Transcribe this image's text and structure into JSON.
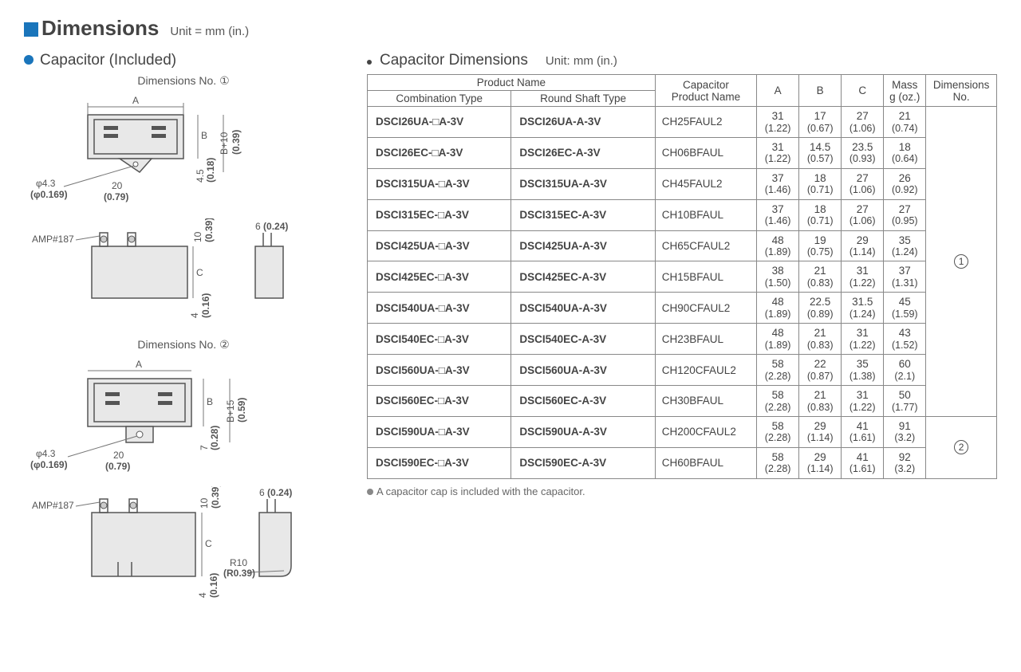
{
  "header": {
    "title": "Dimensions",
    "unit": "Unit = mm (in.)"
  },
  "left": {
    "section_title": "Capacitor (Included)",
    "dim1_label": "Dimensions No. ①",
    "dim2_label": "Dimensions No. ②",
    "amp_label": "AMP#187",
    "phi_mm": "φ4.3",
    "phi_in": "(φ0.169)",
    "d20_mm": "20",
    "d20_in": "(0.79)",
    "d45_mm": "4.5",
    "d45_in": "(0.18)",
    "d7_mm": "7",
    "d7_in": "(0.28)",
    "d10_mm": "10",
    "d10_in": "(0.39)",
    "d6_mm": "6",
    "d6_in": "(0.24)",
    "d4_mm": "4",
    "d4_in": "(0.16)",
    "b10_mm": "B+10",
    "b10_in": "(0.39)",
    "b15_mm": "B+15",
    "b15_in": "(0.59)",
    "r10_mm": "R10",
    "r10_in": "(R0.39)",
    "letter_a": "A",
    "letter_b": "B",
    "letter_c": "C"
  },
  "right": {
    "section_title": "Capacitor Dimensions",
    "section_unit": "Unit: mm (in.)",
    "col_product_name": "Product Name",
    "col_combo": "Combination Type",
    "col_round": "Round Shaft Type",
    "col_cap_name": "Capacitor\nProduct Name",
    "col_a": "A",
    "col_b": "B",
    "col_c": "C",
    "col_mass": "Mass\ng (oz.)",
    "col_dimno": "Dimensions\nNo.",
    "dimno_1": "①",
    "dimno_2": "②",
    "footnote": "A capacitor cap is included with the capacitor."
  },
  "rows": [
    {
      "combo": "DSCI26UA-□A-3V",
      "round": "DSCI26UA-A-3V",
      "cap": "CH25FAUL2",
      "a_mm": "31",
      "a_in": "(1.22)",
      "b_mm": "17",
      "b_in": "(0.67)",
      "c_mm": "27",
      "c_in": "(1.06)",
      "m_mm": "21",
      "m_in": "(0.74)"
    },
    {
      "combo": "DSCI26EC-□A-3V",
      "round": "DSCI26EC-A-3V",
      "cap": "CH06BFAUL",
      "a_mm": "31",
      "a_in": "(1.22)",
      "b_mm": "14.5",
      "b_in": "(0.57)",
      "c_mm": "23.5",
      "c_in": "(0.93)",
      "m_mm": "18",
      "m_in": "(0.64)"
    },
    {
      "combo": "DSCI315UA-□A-3V",
      "round": "DSCI315UA-A-3V",
      "cap": "CH45FAUL2",
      "a_mm": "37",
      "a_in": "(1.46)",
      "b_mm": "18",
      "b_in": "(0.71)",
      "c_mm": "27",
      "c_in": "(1.06)",
      "m_mm": "26",
      "m_in": "(0.92)"
    },
    {
      "combo": "DSCI315EC-□A-3V",
      "round": "DSCI315EC-A-3V",
      "cap": "CH10BFAUL",
      "a_mm": "37",
      "a_in": "(1.46)",
      "b_mm": "18",
      "b_in": "(0.71)",
      "c_mm": "27",
      "c_in": "(1.06)",
      "m_mm": "27",
      "m_in": "(0.95)"
    },
    {
      "combo": "DSCI425UA-□A-3V",
      "round": "DSCI425UA-A-3V",
      "cap": "CH65CFAUL2",
      "a_mm": "48",
      "a_in": "(1.89)",
      "b_mm": "19",
      "b_in": "(0.75)",
      "c_mm": "29",
      "c_in": "(1.14)",
      "m_mm": "35",
      "m_in": "(1.24)"
    },
    {
      "combo": "DSCI425EC-□A-3V",
      "round": "DSCI425EC-A-3V",
      "cap": "CH15BFAUL",
      "a_mm": "38",
      "a_in": "(1.50)",
      "b_mm": "21",
      "b_in": "(0.83)",
      "c_mm": "31",
      "c_in": "(1.22)",
      "m_mm": "37",
      "m_in": "(1.31)"
    },
    {
      "combo": "DSCI540UA-□A-3V",
      "round": "DSCI540UA-A-3V",
      "cap": "CH90CFAUL2",
      "a_mm": "48",
      "a_in": "(1.89)",
      "b_mm": "22.5",
      "b_in": "(0.89)",
      "c_mm": "31.5",
      "c_in": "(1.24)",
      "m_mm": "45",
      "m_in": "(1.59)"
    },
    {
      "combo": "DSCI540EC-□A-3V",
      "round": "DSCI540EC-A-3V",
      "cap": "CH23BFAUL",
      "a_mm": "48",
      "a_in": "(1.89)",
      "b_mm": "21",
      "b_in": "(0.83)",
      "c_mm": "31",
      "c_in": "(1.22)",
      "m_mm": "43",
      "m_in": "(1.52)"
    },
    {
      "combo": "DSCI560UA-□A-3V",
      "round": "DSCI560UA-A-3V",
      "cap": "CH120CFAUL2",
      "a_mm": "58",
      "a_in": "(2.28)",
      "b_mm": "22",
      "b_in": "(0.87)",
      "c_mm": "35",
      "c_in": "(1.38)",
      "m_mm": "60",
      "m_in": "(2.1)"
    },
    {
      "combo": "DSCI560EC-□A-3V",
      "round": "DSCI560EC-A-3V",
      "cap": "CH30BFAUL",
      "a_mm": "58",
      "a_in": "(2.28)",
      "b_mm": "21",
      "b_in": "(0.83)",
      "c_mm": "31",
      "c_in": "(1.22)",
      "m_mm": "50",
      "m_in": "(1.77)"
    },
    {
      "combo": "DSCI590UA-□A-3V",
      "round": "DSCI590UA-A-3V",
      "cap": "CH200CFAUL2",
      "a_mm": "58",
      "a_in": "(2.28)",
      "b_mm": "29",
      "b_in": "(1.14)",
      "c_mm": "41",
      "c_in": "(1.61)",
      "m_mm": "91",
      "m_in": "(3.2)"
    },
    {
      "combo": "DSCI590EC-□A-3V",
      "round": "DSCI590EC-A-3V",
      "cap": "CH60BFAUL",
      "a_mm": "58",
      "a_in": "(2.28)",
      "b_mm": "29",
      "b_in": "(1.14)",
      "c_mm": "41",
      "c_in": "(1.61)",
      "m_mm": "92",
      "m_in": "(3.2)"
    }
  ]
}
